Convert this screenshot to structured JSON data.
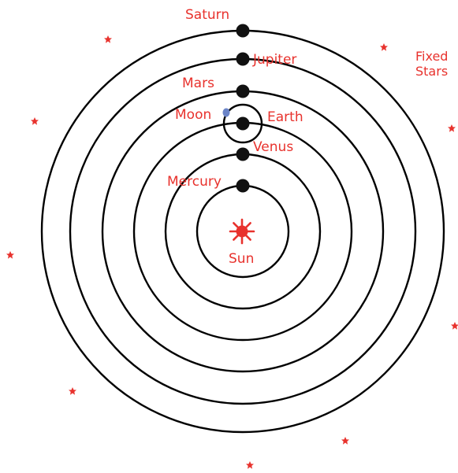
{
  "colors": {
    "label": "#e8322d",
    "orbit": "#000000",
    "planet": "#111111",
    "moon": "#6b84c7",
    "sun": "#e8322d",
    "star": "#e8322d"
  },
  "labels": {
    "saturn": "Saturn",
    "jupiter": "Jupiter",
    "mars": "Mars",
    "moon": "Moon",
    "earth": "Earth",
    "venus": "Venus",
    "mercury": "Mercury",
    "sun": "Sun",
    "fixed_stars_line1": "Fixed",
    "fixed_stars_line2": "Stars"
  },
  "icons": {
    "sun": "sun-icon",
    "star": "star-icon"
  }
}
